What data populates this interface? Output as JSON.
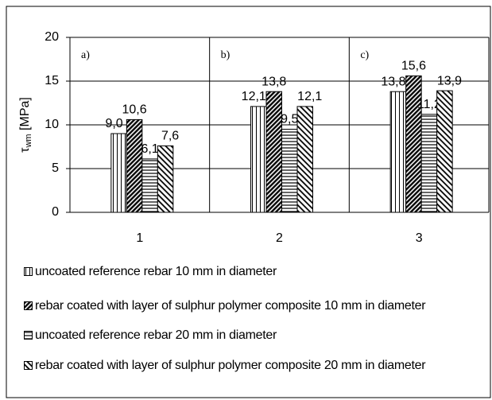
{
  "chart_data": {
    "type": "bar",
    "y_label": {
      "symbol": "τ",
      "subscript": "wm",
      "unit": "[MPa]"
    },
    "categories": [
      "1",
      "2",
      "3"
    ],
    "annotations": [
      "a)",
      "b)",
      "c)"
    ],
    "series": [
      {
        "name": "uncoated reference rebar 10 mm in diameter",
        "color": "#000000",
        "pattern": "vertical",
        "values": [
          9.0,
          12.1,
          13.8
        ],
        "value_labels": [
          "9,0",
          "12,1",
          "13,8"
        ]
      },
      {
        "name": "rebar coated with layer of sulphur polymer composite 10 mm in diameter",
        "color": "#000000",
        "pattern": "dense-diagonal",
        "values": [
          10.6,
          13.8,
          15.6
        ],
        "value_labels": [
          "10,6",
          "13,8",
          "15,6"
        ]
      },
      {
        "name": "uncoated reference rebar 20 mm in diameter",
        "color": "#000000",
        "pattern": "horizontal",
        "values": [
          6.1,
          9.5,
          11.2
        ],
        "value_labels": [
          "6,1",
          "9,5",
          "11,2"
        ]
      },
      {
        "name": "rebar coated with layer of sulphur polymer composite 20 mm in diameter",
        "color": "#000000",
        "pattern": "diagonal",
        "values": [
          7.6,
          12.1,
          13.9
        ],
        "value_labels": [
          "7,6",
          "12,1",
          "13,9"
        ]
      }
    ],
    "ylim": [
      0,
      20
    ],
    "yticks": [
      0,
      5,
      10,
      15,
      20
    ],
    "grid": true
  }
}
